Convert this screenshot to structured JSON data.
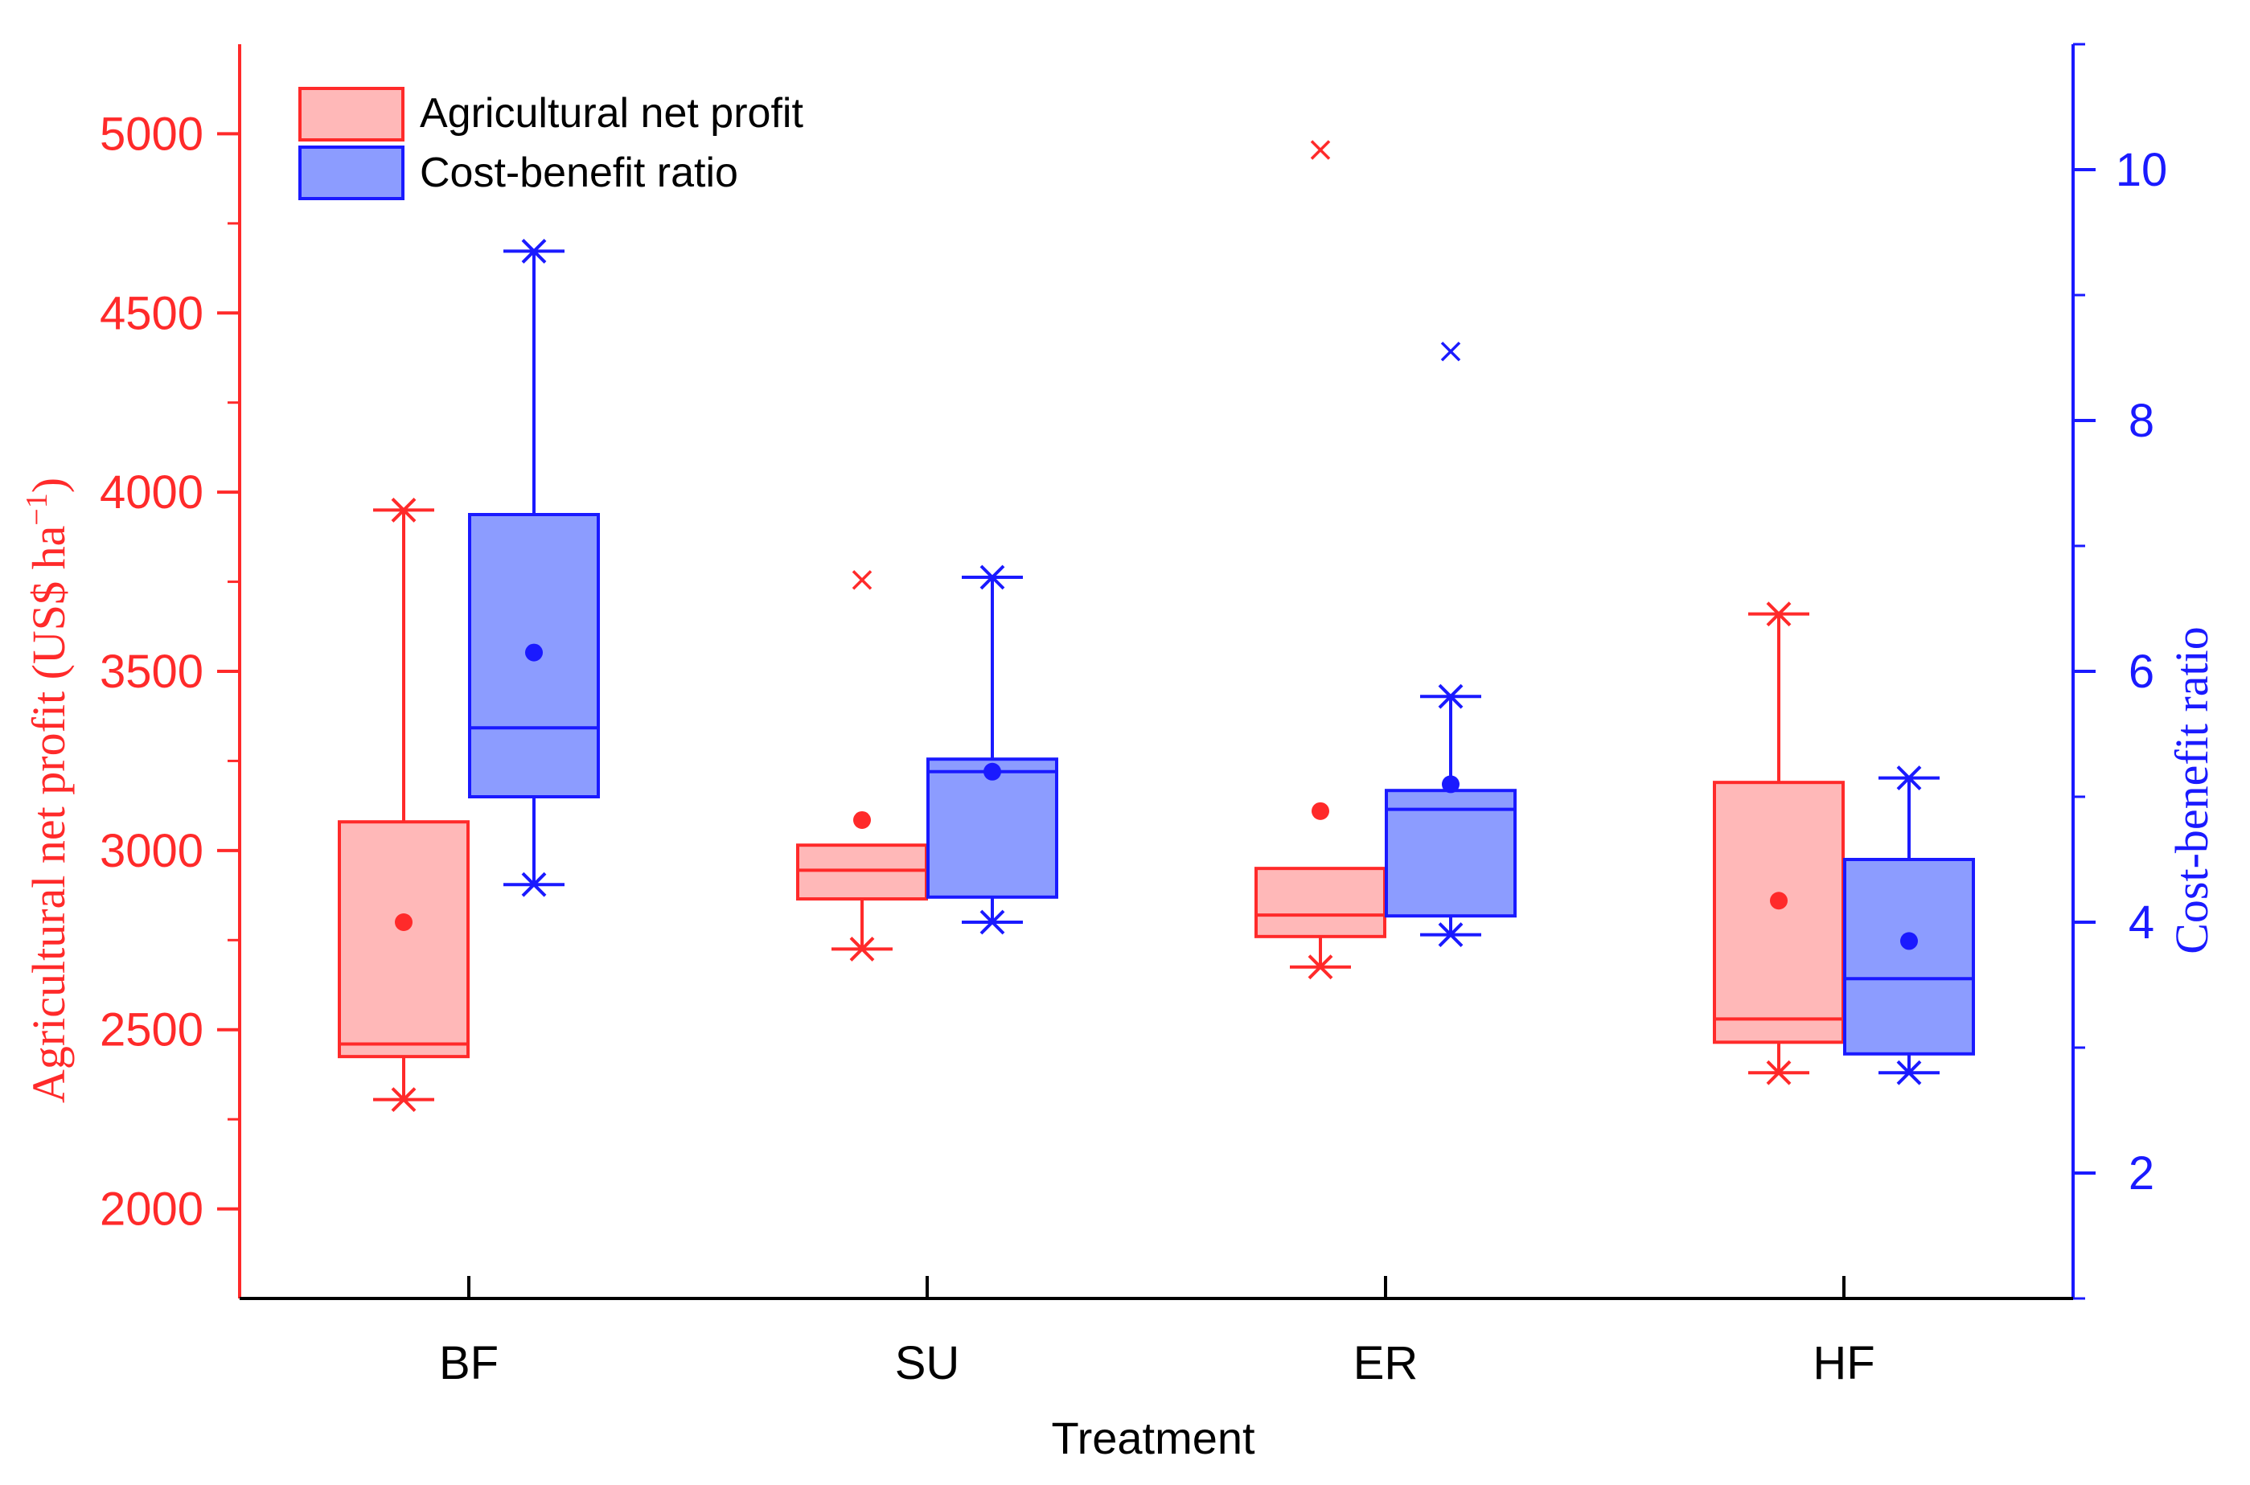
{
  "chart_data": {
    "type": "box",
    "categories": [
      "BF",
      "SU",
      "ER",
      "HF"
    ],
    "xlabel": "Treatment",
    "y_left": {
      "label": "Agricultural net profit (US$ ha",
      "label_sup": "−1",
      "label_close": ")",
      "range": [
        1750,
        5250
      ],
      "ticks": [
        2000,
        2500,
        3000,
        3500,
        4000,
        4500,
        5000
      ],
      "color": "#ff2a2a"
    },
    "y_right": {
      "label": "Cost-benefit ratio",
      "range": [
        1.0,
        11.0
      ],
      "ticks": [
        2,
        4,
        6,
        8,
        10
      ],
      "color": "#1a1aff"
    },
    "legend": {
      "position": "top-left",
      "items": [
        {
          "name": "Agricultural net profit",
          "fill": "#ffb8b8",
          "stroke": "#ff2a2a"
        },
        {
          "name": "Cost-benefit ratio",
          "fill": "#8c9cff",
          "stroke": "#1a1aff"
        }
      ]
    },
    "series": [
      {
        "name": "Agricultural net profit",
        "axis": "left",
        "boxes": [
          {
            "category": "BF",
            "whisker_low": 2305,
            "q1": 2425,
            "median": 2460,
            "q3": 3080,
            "whisker_high": 3950,
            "mean": 2800,
            "outliers": []
          },
          {
            "category": "SU",
            "whisker_low": 2725,
            "q1": 2865,
            "median": 2945,
            "q3": 3015,
            "whisker_high": 3015,
            "mean": 3085,
            "outliers": [
              3755
            ]
          },
          {
            "category": "ER",
            "whisker_low": 2675,
            "q1": 2760,
            "median": 2820,
            "q3": 2950,
            "whisker_high": 2950,
            "mean": 3110,
            "outliers": [
              4955
            ]
          },
          {
            "category": "HF",
            "whisker_low": 2380,
            "q1": 2465,
            "median": 2530,
            "q3": 3190,
            "whisker_high": 3660,
            "mean": 2860,
            "outliers": []
          }
        ]
      },
      {
        "name": "Cost-benefit ratio",
        "axis": "right",
        "boxes": [
          {
            "category": "BF",
            "whisker_low": 4.3,
            "q1": 5.0,
            "median": 5.55,
            "q3": 7.25,
            "whisker_high": 9.35,
            "mean": 6.15,
            "outliers": []
          },
          {
            "category": "SU",
            "whisker_low": 4.0,
            "q1": 4.2,
            "median": 5.2,
            "q3": 5.3,
            "whisker_high": 6.75,
            "mean": 5.2,
            "outliers": []
          },
          {
            "category": "ER",
            "whisker_low": 3.9,
            "q1": 4.05,
            "median": 4.9,
            "q3": 5.05,
            "whisker_high": 5.8,
            "mean": 5.1,
            "outliers": [
              8.55
            ]
          },
          {
            "category": "HF",
            "whisker_low": 2.8,
            "q1": 2.95,
            "median": 3.55,
            "q3": 4.5,
            "whisker_high": 5.15,
            "mean": 3.85,
            "outliers": []
          }
        ]
      }
    ]
  }
}
